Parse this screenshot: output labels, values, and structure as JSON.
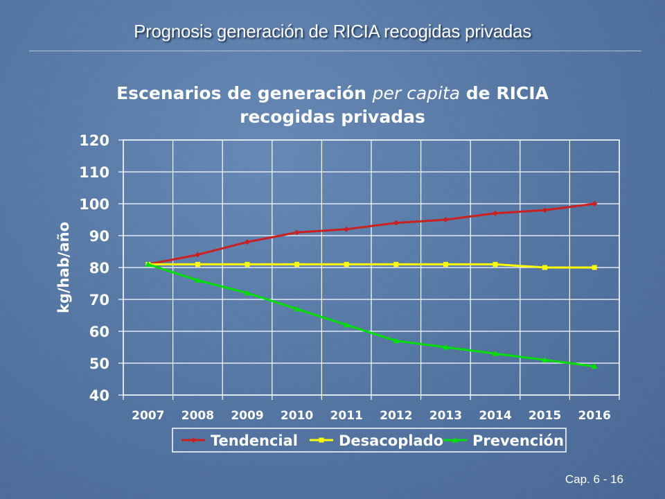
{
  "slide": {
    "title": "Prognosis generación de RICIA recogidas privadas",
    "page_number": "Cap. 6 - 16"
  },
  "chart_data": {
    "type": "line",
    "title_parts": [
      "Escenarios de generación ",
      "per capita",
      " de RICIA recogidas privadas"
    ],
    "xlabel": "",
    "ylabel": "kg/hab/año",
    "categories": [
      "2007",
      "2008",
      "2009",
      "2010",
      "2011",
      "2012",
      "2013",
      "2014",
      "2015",
      "2016"
    ],
    "ylim": [
      40,
      120
    ],
    "yticks": [
      40,
      50,
      60,
      70,
      80,
      90,
      100,
      110,
      120
    ],
    "grid": true,
    "legend_position": "bottom",
    "series": [
      {
        "name": "Tendencial",
        "color": "#cc1f1f",
        "marker": "diamond",
        "values": [
          81,
          84,
          88,
          91,
          92,
          94,
          95,
          97,
          98,
          100
        ]
      },
      {
        "name": "Desacoplado",
        "color": "#ffff00",
        "marker": "square",
        "values": [
          81,
          81,
          81,
          81,
          81,
          81,
          81,
          81,
          80,
          80
        ]
      },
      {
        "name": "Prevención",
        "color": "#00e000",
        "marker": "triangle",
        "values": [
          81,
          76,
          72,
          67,
          62,
          57,
          55,
          53,
          51,
          49
        ]
      }
    ]
  }
}
